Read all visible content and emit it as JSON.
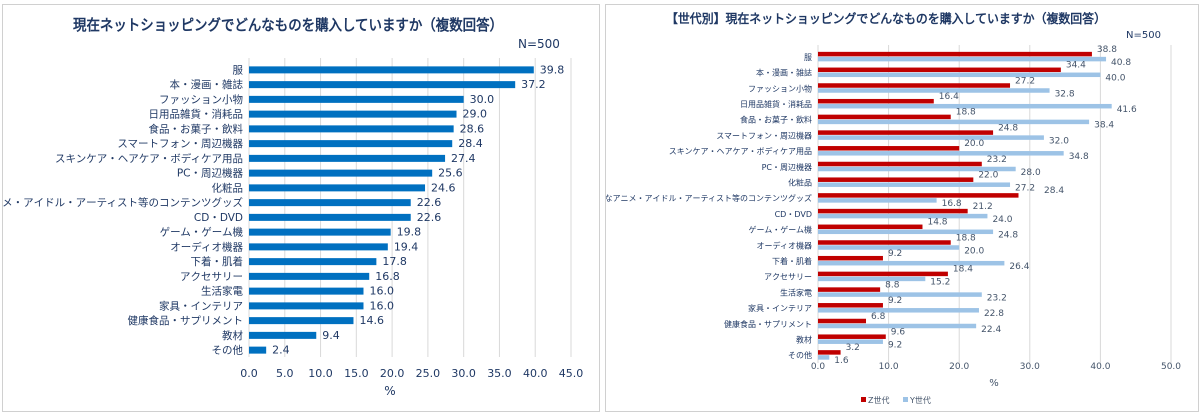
{
  "chart_data": [
    {
      "type": "bar",
      "orientation": "horizontal",
      "title": "現在ネットショッピングでどんなものを購入していますか（複数回答）",
      "note": "N=500",
      "xlabel": "%",
      "xlim": [
        0,
        45
      ],
      "xticks": [
        0,
        5,
        10,
        15,
        20,
        25,
        30,
        35,
        40,
        45
      ],
      "grid": true,
      "color": "#0070C0",
      "categories": [
        "服",
        "本・漫画・雑誌",
        "ファッション小物",
        "日用品雑貨・消耗品",
        "食品・お菓子・飲料",
        "スマートフォン・周辺機器",
        "スキンケア・ヘアケア・ボディケア用品",
        "PC・周辺機器",
        "化粧品",
        "好きなアニメ・アイドル・アーティスト等のコンテンツグッズ",
        "CD・DVD",
        "ゲーム・ゲーム機",
        "オーディオ機器",
        "下着・肌着",
        "アクセサリー",
        "生活家電",
        "家具・インテリア",
        "健康食品・サプリメント",
        "教材",
        "その他"
      ],
      "values": [
        39.8,
        37.2,
        30.0,
        29.0,
        28.6,
        28.4,
        27.4,
        25.6,
        24.6,
        22.6,
        22.6,
        19.8,
        19.4,
        17.8,
        16.8,
        16.0,
        16.0,
        14.6,
        9.4,
        2.4
      ]
    },
    {
      "type": "bar",
      "orientation": "horizontal",
      "title": "【世代別】現在ネットショッピングでどんなものを購入していますか（複数回答）",
      "note": "N=500",
      "xlabel": "%",
      "xlim": [
        0,
        50
      ],
      "xticks": [
        0,
        10,
        20,
        30,
        40,
        50
      ],
      "grid": true,
      "legend": "bottom",
      "categories": [
        "服",
        "本・漫画・雑誌",
        "ファッション小物",
        "日用品雑貨・消耗品",
        "食品・お菓子・飲料",
        "スマートフォン・周辺機器",
        "スキンケア・ヘアケア・ボディケア用品",
        "PC・周辺機器",
        "化粧品",
        "好きなアニメ・アイドル・アーティスト等のコンテンツグッズ",
        "CD・DVD",
        "ゲーム・ゲーム機",
        "オーディオ機器",
        "下着・肌着",
        "アクセサリー",
        "生活家電",
        "家具・インテリア",
        "健康食品・サプリメント",
        "教材",
        "その他"
      ],
      "series": [
        {
          "name": "Z世代",
          "color": "#C00000",
          "values": [
            38.8,
            34.4,
            27.2,
            16.4,
            18.8,
            24.8,
            20.0,
            23.2,
            22.0,
            28.4,
            21.2,
            14.8,
            18.8,
            9.2,
            18.4,
            8.8,
            9.2,
            6.8,
            9.6,
            3.2
          ]
        },
        {
          "name": "Y世代",
          "color": "#9DC3E6",
          "values": [
            40.8,
            40.0,
            32.8,
            41.6,
            38.4,
            32.0,
            34.8,
            28.0,
            27.2,
            16.8,
            24.0,
            24.8,
            20.0,
            26.4,
            15.2,
            23.2,
            22.8,
            22.4,
            9.2,
            1.6
          ]
        }
      ]
    }
  ]
}
